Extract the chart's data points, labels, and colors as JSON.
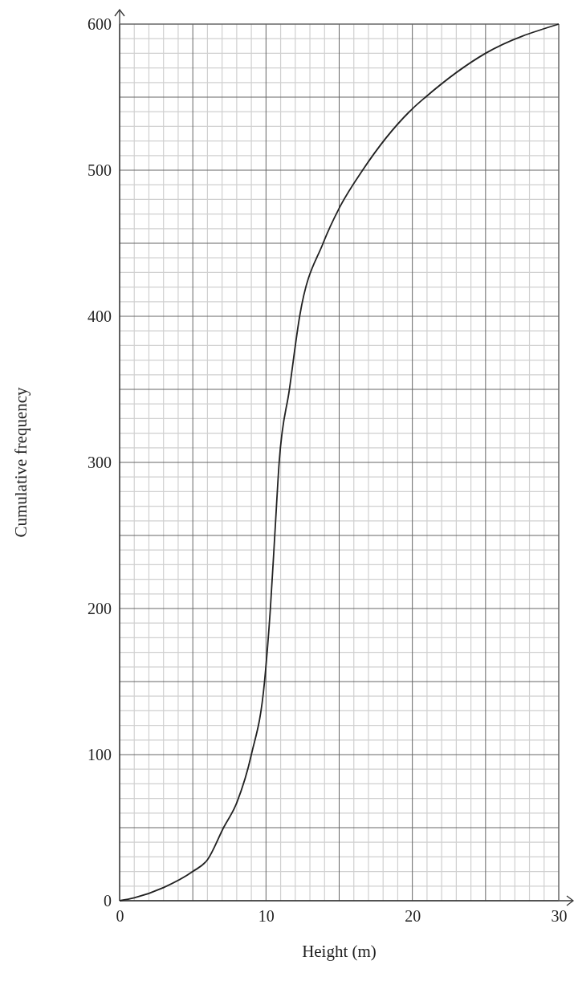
{
  "chart_data": {
    "type": "line",
    "xlabel": "Height (m)",
    "ylabel": "Cumulative frequency",
    "x": [
      0,
      1,
      3,
      5,
      6,
      7.1,
      8,
      9,
      9.9,
      10.3,
      10.6,
      10.9,
      11.6,
      12.3,
      13.9,
      15,
      16.6,
      20,
      20.9,
      25,
      30
    ],
    "series": [
      {
        "color": "#222222",
        "values": [
          0,
          2,
          9,
          20,
          28,
          50,
          67,
          100,
          150,
          200,
          250,
          300,
          350,
          400,
          450,
          474,
          500,
          542,
          550,
          580,
          600
        ]
      }
    ],
    "xlim": [
      0,
      30
    ],
    "ylim": [
      0,
      600
    ],
    "xticks": [
      0,
      {
        "value": 5,
        "label": null
      },
      10,
      {
        "value": 15,
        "label": null
      },
      20,
      {
        "value": 25,
        "label": null
      },
      30
    ],
    "yticks": [
      0,
      {
        "value": 50,
        "label": null
      },
      100,
      {
        "value": 150,
        "label": null
      },
      200,
      {
        "value": 250,
        "label": null
      },
      300,
      {
        "value": 350,
        "label": null
      },
      400,
      {
        "value": 450,
        "label": null
      },
      500,
      {
        "value": 550,
        "label": null
      },
      600
    ],
    "grid": true,
    "marker": "none",
    "line_style": "solid"
  }
}
